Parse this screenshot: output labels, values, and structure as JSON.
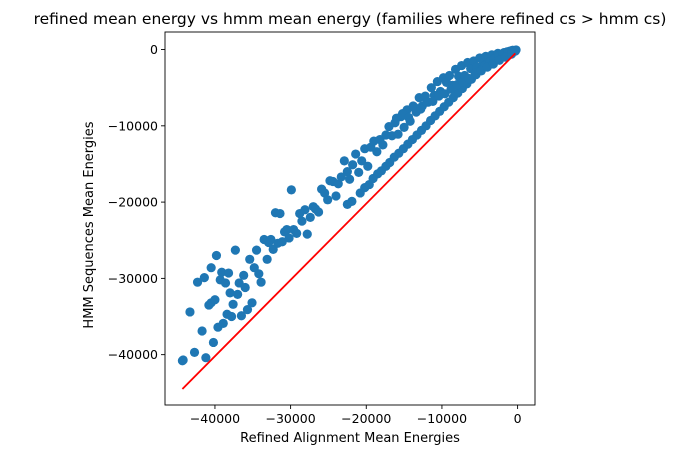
{
  "chart_data": {
    "type": "scatter",
    "title": "refined mean energy vs hmm mean energy (families where refined cs > hmm cs)",
    "xlabel": "Refined Alignment Mean Energies",
    "ylabel": "HMM Sequences Mean Energies",
    "xlim": [
      -46600,
      2300
    ],
    "ylim": [
      -46600,
      2300
    ],
    "xticks": [
      -40000,
      -30000,
      -20000,
      -10000,
      0
    ],
    "yticks": [
      -40000,
      -30000,
      -20000,
      -10000,
      0
    ],
    "xtick_labels": [
      "−40000",
      "−30000",
      "−20000",
      "−10000",
      "0"
    ],
    "ytick_labels": [
      "−40000",
      "−30000",
      "−20000",
      "−10000",
      "0"
    ],
    "grid": false,
    "colors": {
      "points": "#1f77b4",
      "line": "#ff0000"
    },
    "series": [
      {
        "type": "scatter",
        "x": [
          -44300,
          -44200,
          -43300,
          -42700,
          -42300,
          -41700,
          -41400,
          -41200,
          -40800,
          -40500,
          -40500,
          -40200,
          -40000,
          -39800,
          -39600,
          -39300,
          -39100,
          -38900,
          -38600,
          -38400,
          -38200,
          -38000,
          -37800,
          -37600,
          -37300,
          -37000,
          -36800,
          -36500,
          -36200,
          -36000,
          -35700,
          -35400,
          -35100,
          -34800,
          -34500,
          -34200,
          -33900,
          -33500,
          -33100,
          -32900,
          -32600,
          -32300,
          -32000,
          -31700,
          -31400,
          -31100,
          -30800,
          -30500,
          -30200,
          -29900,
          -29600,
          -29200,
          -28800,
          -28500,
          -28100,
          -27800,
          -27400,
          -27000,
          -26700,
          -26300,
          -25900,
          -25500,
          -25100,
          -24800,
          -24400,
          -24000,
          -23700,
          -23300,
          -22900,
          -22500,
          -22200,
          -21800,
          -21400,
          -21000,
          -20600,
          -20200,
          -19800,
          -19400,
          -19000,
          -18600,
          -18200,
          -17800,
          -17400,
          -17000,
          -16600,
          -16200,
          -15800,
          -15400,
          -15000,
          -14600,
          -14200,
          -13800,
          -13400,
          -13000,
          -12600,
          -12200,
          -11800,
          -11400,
          -11000,
          -10600,
          -10200,
          -9800,
          -9400,
          -9000,
          -8600,
          -8200,
          -7800,
          -7400,
          -7000,
          -6600,
          -6200,
          -5800,
          -5400,
          -5000,
          -4600,
          -4200,
          -3800,
          -3400,
          -3000,
          -2600,
          -2200,
          -1800,
          -1400,
          -1000,
          -600,
          -200,
          -22500,
          -21900,
          -20800,
          -20200,
          -19600,
          -19100,
          -18500,
          -18000,
          -17400,
          -16900,
          -16300,
          -15700,
          -15100,
          -14500,
          -13900,
          -13300,
          -12700,
          -12100,
          -11500,
          -10900,
          -10300,
          -9700,
          -9100,
          -8500,
          -7900,
          -7300,
          -6700,
          -6100,
          -5500,
          -4900,
          -4300,
          -3700,
          -3100,
          -2500,
          -1900,
          -1300,
          -700,
          -16000,
          -15200,
          -14400,
          -13600,
          -12800,
          -12000,
          -11200,
          -10400,
          -9600,
          -8800,
          -8000,
          -7200,
          -6400,
          -5600,
          -4800,
          -4000,
          -3200,
          -2400,
          -1600,
          -800,
          -300
        ],
        "y": [
          -40800,
          -40700,
          -34400,
          -39700,
          -30500,
          -36900,
          -29900,
          -40400,
          -33500,
          -28600,
          -33200,
          -38400,
          -32800,
          -27000,
          -36400,
          -30200,
          -29200,
          -35900,
          -30600,
          -34700,
          -29300,
          -31900,
          -35000,
          -33400,
          -26300,
          -32100,
          -30600,
          -34900,
          -29600,
          -31200,
          -34100,
          -27500,
          -33200,
          -28600,
          -26300,
          -29400,
          -30500,
          -24900,
          -27500,
          -25300,
          -24900,
          -26200,
          -21400,
          -25400,
          -21500,
          -25200,
          -23900,
          -23600,
          -24700,
          -18400,
          -23600,
          -24100,
          -21500,
          -22500,
          -21000,
          -24200,
          -22000,
          -20600,
          -20900,
          -21300,
          -18300,
          -18800,
          -19700,
          -17200,
          -17300,
          -19200,
          -17600,
          -16700,
          -14600,
          -16000,
          -17000,
          -15100,
          -13700,
          -16100,
          -14600,
          -13000,
          -15300,
          -12800,
          -12000,
          -13400,
          -11800,
          -12500,
          -11200,
          -10100,
          -11300,
          -9600,
          -11100,
          -8800,
          -10200,
          -7900,
          -9400,
          -7400,
          -8200,
          -6300,
          -7400,
          -6100,
          -6900,
          -5000,
          -6000,
          -4200,
          -5500,
          -3700,
          -4300,
          -3400,
          -4700,
          -2600,
          -3500,
          -2100,
          -3400,
          -1700,
          -2500,
          -1500,
          -2300,
          -1100,
          -1800,
          -900,
          -1200,
          -700,
          -900,
          -500,
          -600,
          -400,
          -300,
          -200,
          -100,
          -50,
          -20300,
          -19900,
          -18800,
          -18100,
          -17700,
          -16900,
          -16300,
          -15900,
          -15300,
          -14800,
          -14100,
          -13600,
          -13000,
          -12400,
          -11800,
          -11200,
          -10600,
          -10000,
          -9300,
          -8700,
          -8100,
          -7500,
          -6900,
          -6300,
          -5700,
          -5100,
          -4500,
          -3900,
          -3300,
          -2700,
          -2100,
          -1600,
          -1200,
          -800,
          -500,
          -300,
          -100,
          -9000,
          -8400,
          -8900,
          -7600,
          -7800,
          -6900,
          -6800,
          -6100,
          -5800,
          -5200,
          -4600,
          -4300,
          -3800,
          -3100,
          -2800,
          -2300,
          -1900,
          -1400,
          -1000,
          -600,
          -200
        ]
      },
      {
        "type": "line",
        "x": [
          -44300,
          -300
        ],
        "y": [
          -44500,
          -500
        ]
      }
    ]
  }
}
